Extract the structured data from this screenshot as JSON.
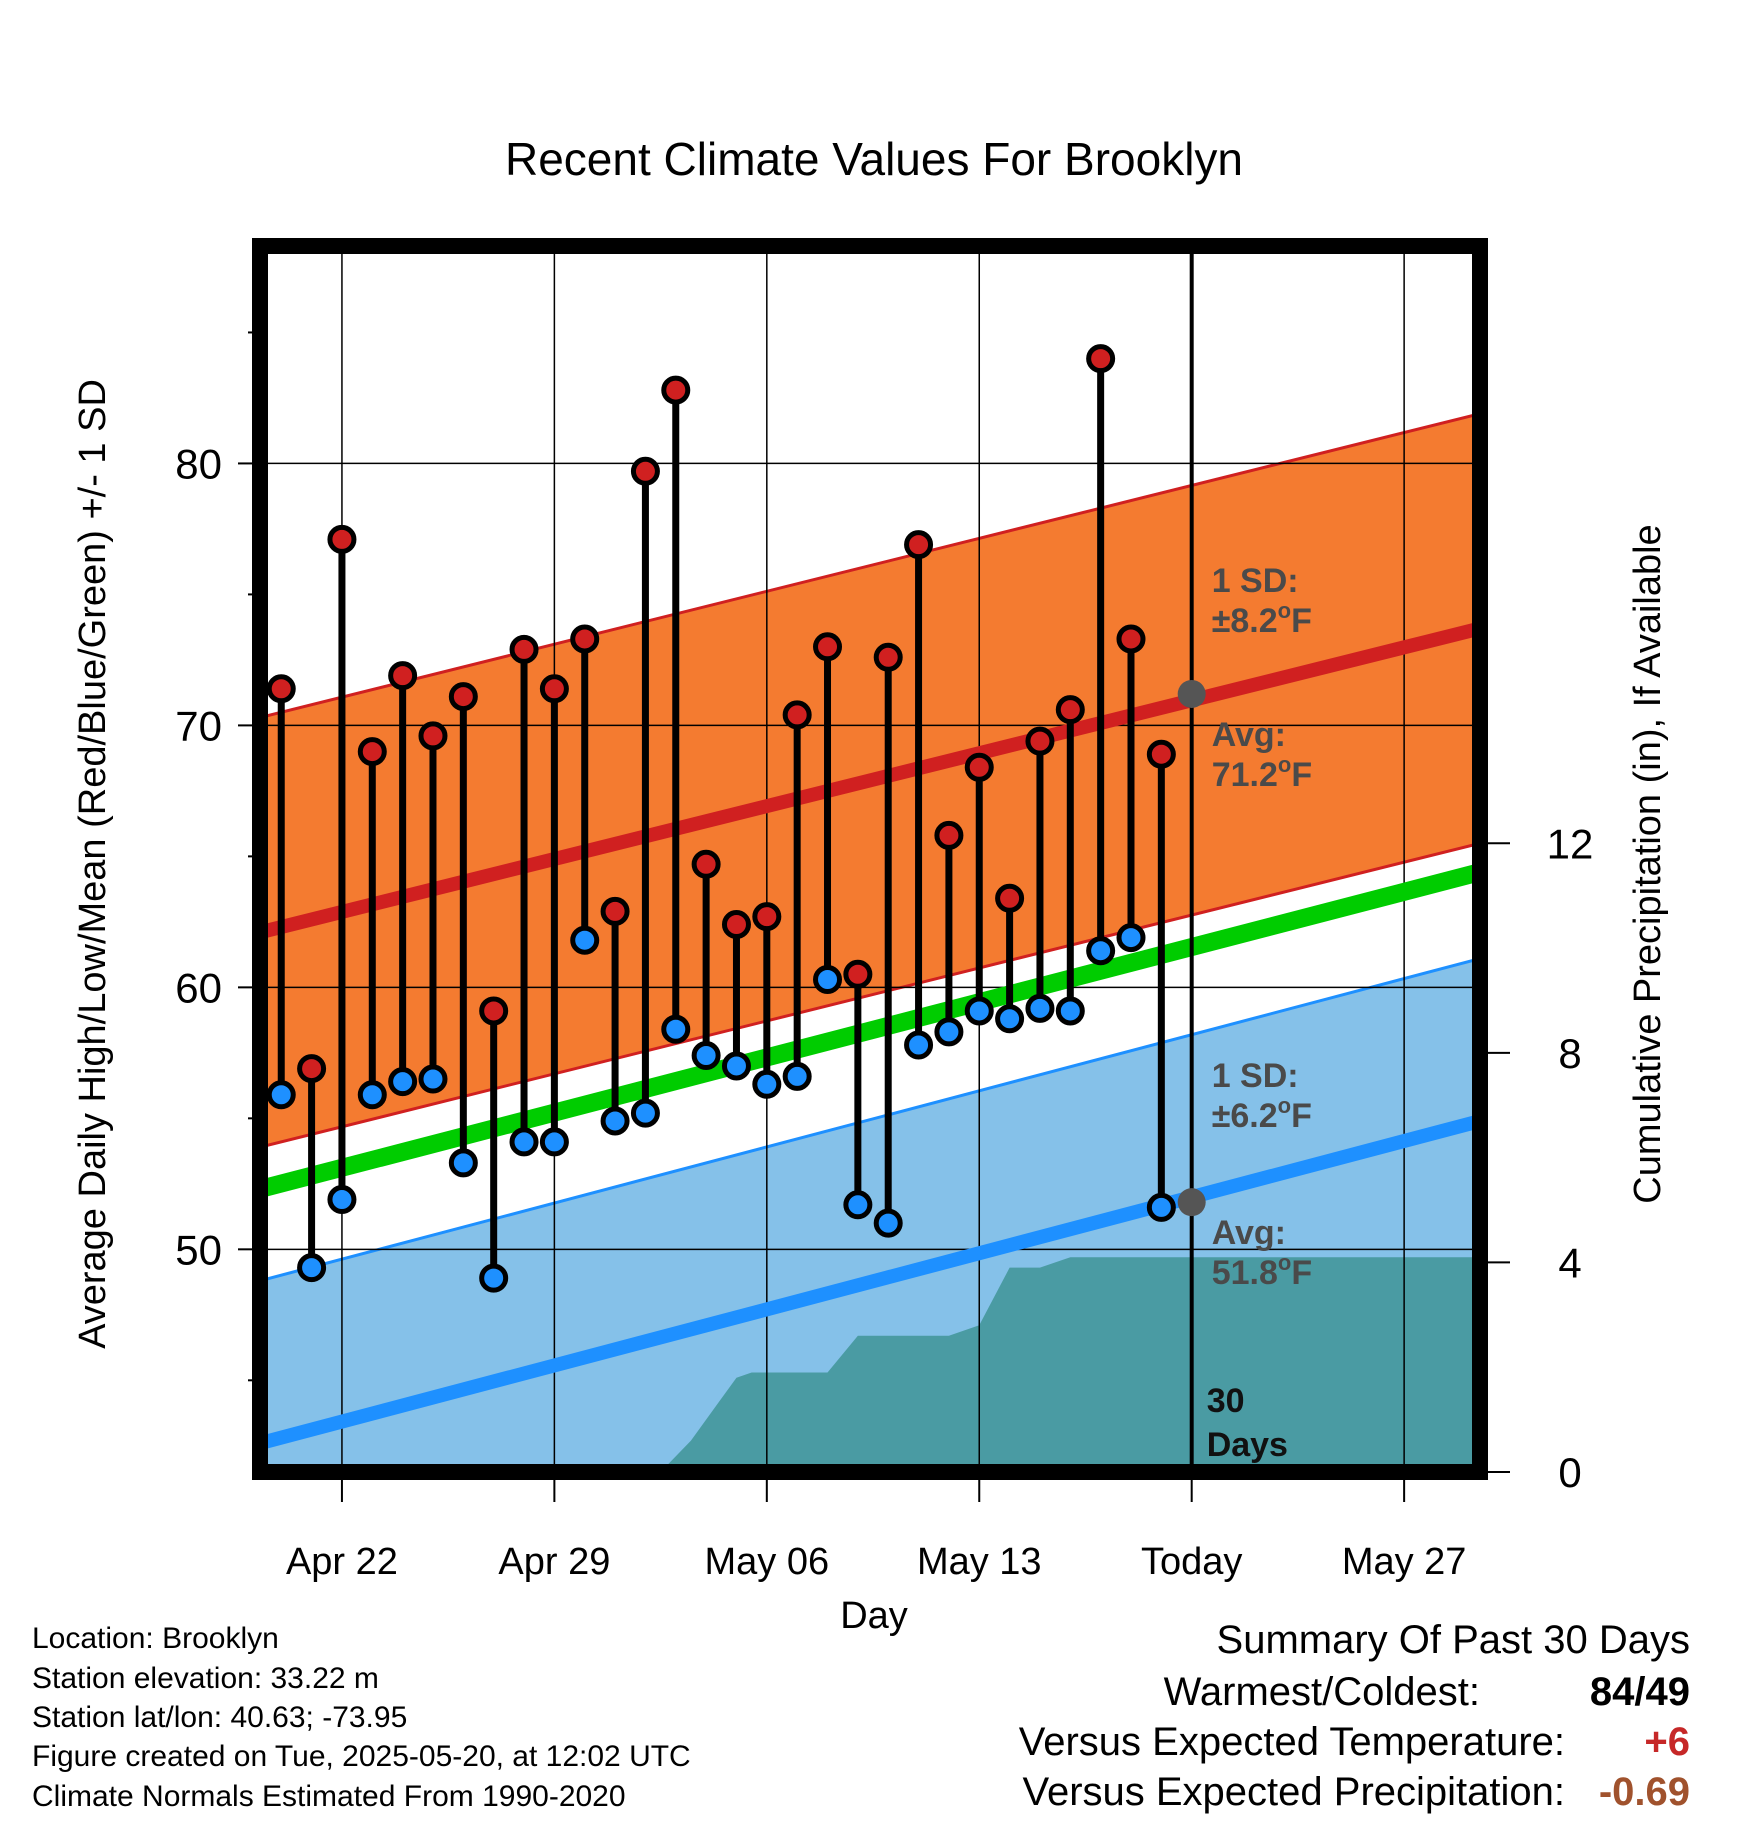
{
  "chart_data": {
    "type": "line",
    "title": "Recent Climate Values For Brooklyn",
    "xlabel": "Day",
    "ylabel": "Average Daily High/Low/Mean (Red/Blue/Green) +/- 1 SD",
    "y2label": "Cumulative Precipitation (in), If Available",
    "ylim": [
      41.5,
      88.3
    ],
    "y2lim": [
      0,
      23.4
    ],
    "yticks": [
      50,
      60,
      70,
      80
    ],
    "y2ticks": [
      0,
      4,
      8,
      12
    ],
    "x_tick_labels": [
      "Apr 22",
      "Apr 29",
      "May 06",
      "May 13",
      "Today",
      "May 27"
    ],
    "x_tick_dates": [
      "2025-04-22",
      "2025-04-29",
      "2025-05-06",
      "2025-05-13",
      "2025-05-20",
      "2025-05-27"
    ],
    "xlim": [
      "2025-04-19.3",
      "2025-05-29.5"
    ],
    "today": "2025-05-20",
    "grid": true,
    "days": [
      "2025-04-20",
      "2025-04-21",
      "2025-04-22",
      "2025-04-23",
      "2025-04-24",
      "2025-04-25",
      "2025-04-26",
      "2025-04-27",
      "2025-04-28",
      "2025-04-29",
      "2025-04-30",
      "2025-05-01",
      "2025-05-02",
      "2025-05-03",
      "2025-05-04",
      "2025-05-05",
      "2025-05-06",
      "2025-05-07",
      "2025-05-08",
      "2025-05-09",
      "2025-05-10",
      "2025-05-11",
      "2025-05-12",
      "2025-05-13",
      "2025-05-14",
      "2025-05-15",
      "2025-05-16",
      "2025-05-17",
      "2025-05-18",
      "2025-05-19"
    ],
    "series": [
      {
        "name": "High",
        "color": "#d02020",
        "values": [
          71.4,
          56.9,
          77.1,
          69.0,
          71.9,
          69.6,
          71.1,
          59.1,
          72.9,
          71.4,
          73.3,
          62.9,
          79.7,
          82.8,
          64.7,
          62.4,
          62.7,
          70.4,
          73.0,
          60.5,
          72.6,
          76.9,
          65.8,
          68.4,
          63.4,
          69.4,
          70.6,
          84.0,
          73.3,
          68.9
        ]
      },
      {
        "name": "Low",
        "color": "#1e90ff",
        "values": [
          55.9,
          49.3,
          51.9,
          55.9,
          56.4,
          56.5,
          53.3,
          48.9,
          54.1,
          54.1,
          61.8,
          54.9,
          55.2,
          58.4,
          57.4,
          57.0,
          56.3,
          56.6,
          60.3,
          51.7,
          51.0,
          57.8,
          58.3,
          59.1,
          58.8,
          59.2,
          59.1,
          61.4,
          61.9,
          51.6
        ]
      }
    ],
    "normals": {
      "high_avg_start": 62.1,
      "high_avg_end": 73.7,
      "high_sd": 8.2,
      "mean_start": 52.3,
      "mean_end": 64.4,
      "low_avg_start": 42.6,
      "low_avg_end": 54.9,
      "low_sd": 6.2
    },
    "precip_cumulative": {
      "x": [
        "2025-04-19.3",
        "2025-05-02.5",
        "2025-05-03.5",
        "2025-05-04.5",
        "2025-05-05",
        "2025-05-05.5",
        "2025-05-06",
        "2025-05-08",
        "2025-05-09",
        "2025-05-12",
        "2025-05-13",
        "2025-05-14",
        "2025-05-15",
        "2025-05-16",
        "2025-05-29.5"
      ],
      "values": [
        0,
        0,
        0.6,
        1.4,
        1.8,
        1.9,
        1.9,
        1.9,
        2.6,
        2.6,
        2.8,
        3.9,
        3.9,
        4.1,
        4.1
      ]
    },
    "annotations": {
      "high_sd_label": "1 SD:",
      "high_sd_value": "±8.2",
      "high_avg_label": "Avg:",
      "high_avg_value": "71.2",
      "low_sd_label": "1 SD:",
      "low_sd_value": "±6.2",
      "low_avg_label": "Avg:",
      "low_avg_value": "51.8",
      "unit": "F",
      "degree": "o",
      "today_high": 71.2,
      "today_low": 51.8,
      "period_line1": "30",
      "period_line2": "Days"
    },
    "colors": {
      "high_band": "#f47b30",
      "high_line": "#d02020",
      "mean_line": "#00cc00",
      "low_band": "#85c1e9",
      "low_line": "#1e90ff",
      "precip": "#4a9ba3",
      "annotation": "#4a4a4a"
    }
  },
  "info": {
    "location": "Location: Brooklyn",
    "elevation": "Station elevation: 33.22 m",
    "latlon": "Station lat/lon: 40.63; -73.95",
    "created": "Figure created on Tue, 2025-05-20, at 12:02 UTC",
    "normals": "Climate Normals Estimated From 1990-2020"
  },
  "summary": {
    "heading": "Summary Of Past 30 Days",
    "warm_cold_label": "Warmest/Coldest:",
    "warm_cold_value": "84/49",
    "temp_label": "Versus Expected Temperature:",
    "temp_value": "+6",
    "temp_color": "#c62828",
    "precip_label": "Versus Expected Precipitation:",
    "precip_value": "-0.69",
    "precip_color": "#a0522d"
  }
}
